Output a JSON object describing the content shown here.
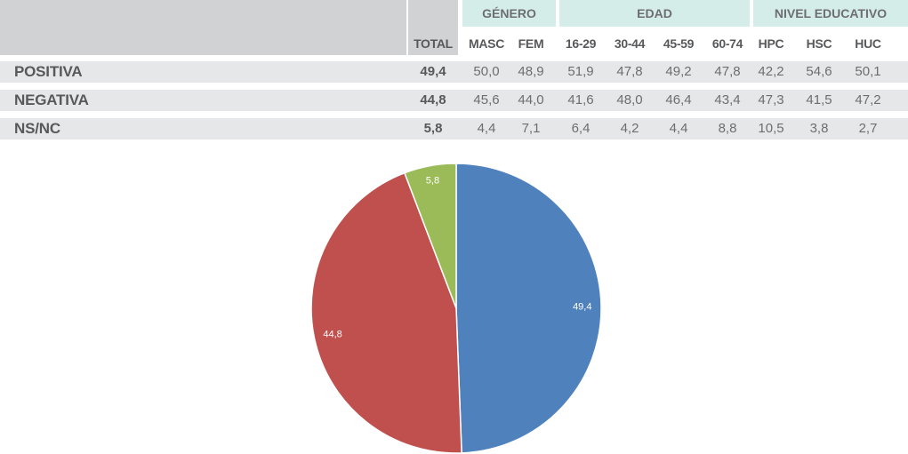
{
  "table": {
    "groups": [
      {
        "label": "GÉNERO"
      },
      {
        "label": "EDAD"
      },
      {
        "label": "NIVEL EDUCATIVO"
      }
    ],
    "columns": [
      "TOTAL",
      "MASC",
      "FEM",
      "16-29",
      "30-44",
      "45-59",
      "60-74",
      "HPC",
      "HSC",
      "HUC"
    ],
    "rows": [
      {
        "label": "POSITIVA",
        "values": [
          "49,4",
          "50,0",
          "48,9",
          "51,9",
          "47,8",
          "49,2",
          "47,8",
          "42,2",
          "54,6",
          "50,1"
        ]
      },
      {
        "label": "NEGATIVA",
        "values": [
          "44,8",
          "45,6",
          "44,0",
          "41,6",
          "48,0",
          "46,4",
          "43,4",
          "47,3",
          "41,5",
          "47,2"
        ]
      },
      {
        "label": "NS/NC",
        "values": [
          "5,8",
          "4,4",
          "7,1",
          "6,4",
          "4,2",
          "4,4",
          "8,8",
          "10,5",
          "3,8",
          "2,7"
        ]
      }
    ]
  },
  "chart_data": {
    "type": "pie",
    "categories": [
      "POSITIVA",
      "NEGATIVA",
      "NS/NC"
    ],
    "values": [
      49.4,
      44.8,
      5.8
    ],
    "labels": [
      "49,4",
      "44,8",
      "5,8"
    ],
    "colors": [
      "#4f81bd",
      "#c0504d",
      "#9bbb59"
    ],
    "title": ""
  }
}
